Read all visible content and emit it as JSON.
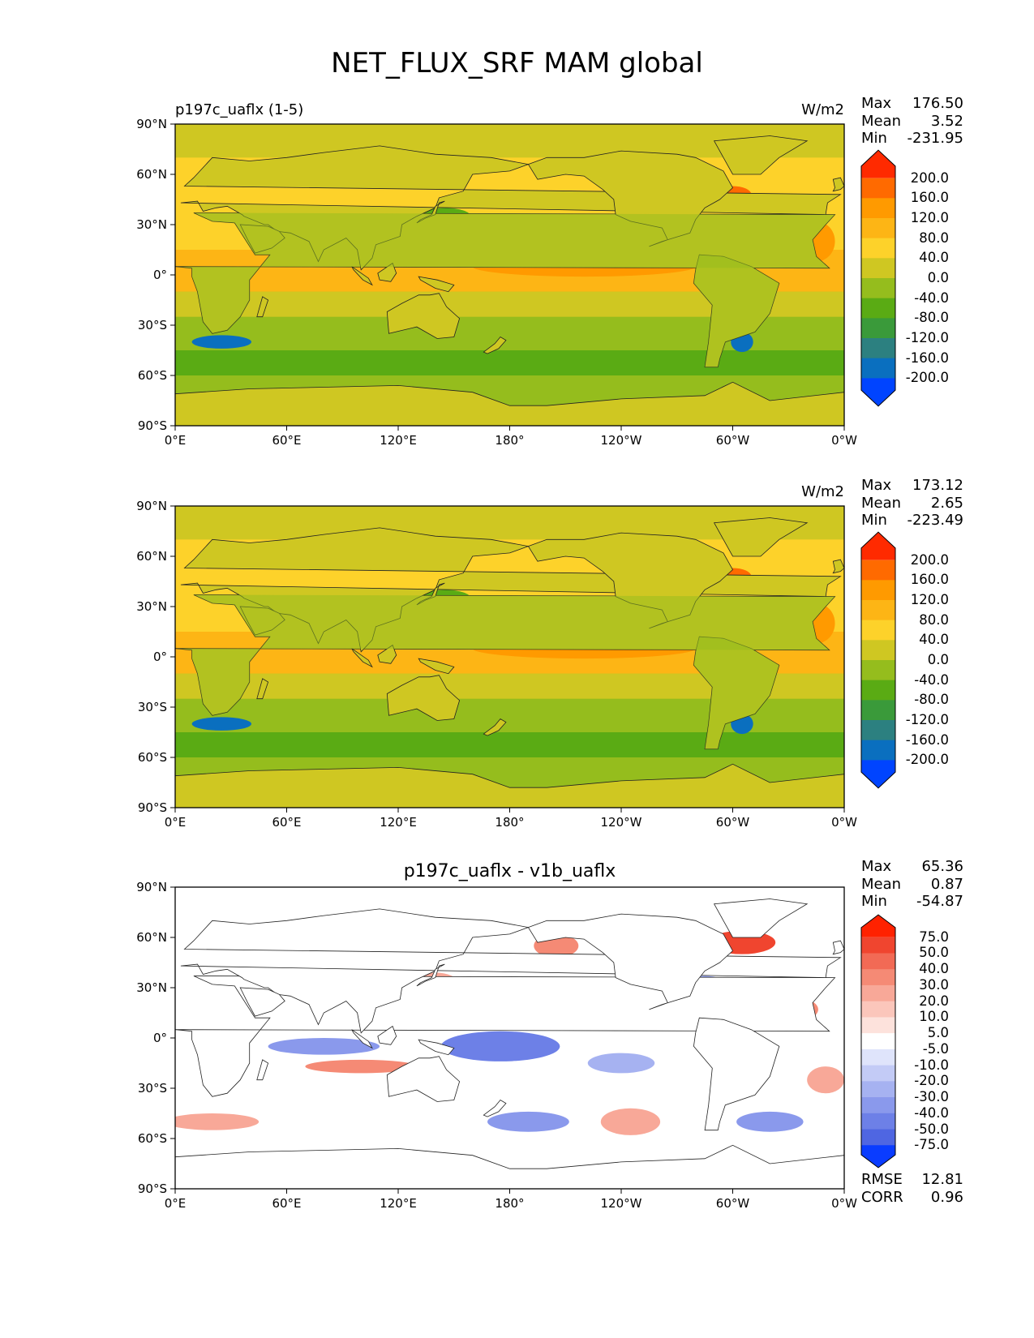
{
  "figure": {
    "title": "NET_FLUX_SRF MAM global"
  },
  "chart_data": [
    {
      "type": "heatmap",
      "panel": "test",
      "title_left": "p197c_uaflx (1-5)",
      "units": "W/m2",
      "stats": {
        "max": "176.50",
        "mean": "3.52",
        "min": "-231.95"
      },
      "colorbar": {
        "levels": [
          "200.0",
          "160.0",
          "120.0",
          "80.0",
          "40.0",
          "0.0",
          "-40.0",
          "-80.0",
          "-120.0",
          "-160.0",
          "-200.0"
        ],
        "colors": [
          "#ff2a00",
          "#ff6a00",
          "#ff9a00",
          "#fdb515",
          "#fdd22a",
          "#cfc722",
          "#95bd1d",
          "#5aab14",
          "#3a9a3a",
          "#2c8080",
          "#0a6fbf",
          "#0044ff"
        ],
        "extend": "both"
      },
      "xticks": [
        "0°E",
        "60°E",
        "120°E",
        "180°",
        "120°W",
        "60°W",
        "0°W"
      ],
      "yticks": [
        "90°N",
        "60°N",
        "30°N",
        "0°",
        "30°S",
        "60°S",
        "90°S"
      ],
      "xlim": [
        0,
        360
      ],
      "ylim": [
        -90,
        90
      ],
      "grid": false
    },
    {
      "type": "heatmap",
      "panel": "reference",
      "title_left": "",
      "units": "W/m2",
      "stats": {
        "max": "173.12",
        "mean": "2.65",
        "min": "-223.49"
      },
      "colorbar": {
        "levels": [
          "200.0",
          "160.0",
          "120.0",
          "80.0",
          "40.0",
          "0.0",
          "-40.0",
          "-80.0",
          "-120.0",
          "-160.0",
          "-200.0"
        ],
        "colors": [
          "#ff2a00",
          "#ff6a00",
          "#ff9a00",
          "#fdb515",
          "#fdd22a",
          "#cfc722",
          "#95bd1d",
          "#5aab14",
          "#3a9a3a",
          "#2c8080",
          "#0a6fbf",
          "#0044ff"
        ],
        "extend": "both"
      },
      "xticks": [
        "0°E",
        "60°E",
        "120°E",
        "180°",
        "120°W",
        "60°W",
        "0°W"
      ],
      "yticks": [
        "90°N",
        "60°N",
        "30°N",
        "0°",
        "30°S",
        "60°S",
        "90°S"
      ],
      "xlim": [
        0,
        360
      ],
      "ylim": [
        -90,
        90
      ],
      "grid": false
    },
    {
      "type": "heatmap",
      "panel": "difference",
      "title_center": "p197c_uaflx - v1b_uaflx",
      "units": "",
      "stats": {
        "max": "65.36",
        "mean": "0.87",
        "min": "-54.87"
      },
      "metrics": {
        "rmse": "12.81",
        "corr": "0.96"
      },
      "colorbar": {
        "levels": [
          "75.0",
          "50.0",
          "40.0",
          "30.0",
          "20.0",
          "10.0",
          "5.0",
          "-5.0",
          "-10.0",
          "-20.0",
          "-30.0",
          "-40.0",
          "-50.0",
          "-75.0"
        ],
        "colors": [
          "#ff2200",
          "#f0452f",
          "#f26a55",
          "#f58a75",
          "#f8a898",
          "#fbc6bb",
          "#fde2dc",
          "#ffffff",
          "#dfe4fb",
          "#c3cbf6",
          "#a6b2f1",
          "#8a99ec",
          "#6d80e7",
          "#4f66e2",
          "#0a3cff"
        ],
        "extend": "both"
      },
      "xticks": [
        "0°E",
        "60°E",
        "120°E",
        "180°",
        "120°W",
        "60°W",
        "0°W"
      ],
      "yticks": [
        "90°N",
        "60°N",
        "30°N",
        "0°",
        "30°S",
        "60°S",
        "90°S"
      ],
      "xlim": [
        0,
        360
      ],
      "ylim": [
        -90,
        90
      ],
      "grid": false
    }
  ],
  "labels": {
    "max": "Max",
    "mean": "Mean",
    "min": "Min",
    "rmse": "RMSE",
    "corr": "CORR"
  }
}
